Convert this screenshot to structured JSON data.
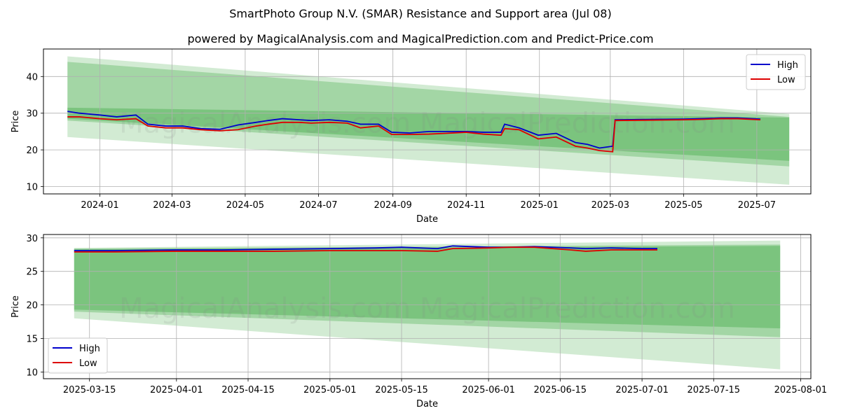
{
  "title": "SmartPhoto Group N.V. (SMAR) Resistance and Support area (Jul 08)",
  "subtitle": "powered by MagicalAnalysis.com and MagicalPrediction.com and Predict-Price.com",
  "watermark": "MagicalAnalysis.com    MagicalPrediction.com",
  "colors": {
    "high": "#0000cc",
    "low": "#dd0000",
    "band": "#4caf50"
  },
  "chart_data": [
    {
      "type": "line",
      "xlabel": "Date",
      "ylabel": "Price",
      "xlim": [
        "2023-11-15",
        "2025-08-15"
      ],
      "ylim": [
        8,
        47.5
      ],
      "x_ticks": [
        "2024-01",
        "2024-03",
        "2024-05",
        "2024-07",
        "2024-09",
        "2024-11",
        "2025-01",
        "2025-03",
        "2025-05",
        "2025-07"
      ],
      "y_ticks": [
        10,
        20,
        30,
        40
      ],
      "grid": true,
      "legend": "top-right",
      "bands": [
        {
          "x": [
            "2023-12-05",
            "2025-07-28"
          ],
          "upper": [
            45.5,
            29.8
          ],
          "lower": [
            23.5,
            10.5
          ]
        },
        {
          "x": [
            "2023-12-05",
            "2025-07-28"
          ],
          "upper": [
            44.0,
            29.0
          ],
          "lower": [
            28.0,
            15.5
          ]
        },
        {
          "x": [
            "2023-12-05",
            "2025-07-28"
          ],
          "upper": [
            31.5,
            28.8
          ],
          "lower": [
            28.5,
            17.0
          ]
        }
      ],
      "series": [
        {
          "name": "High",
          "x": [
            "2023-12-05",
            "2023-12-15",
            "2024-01-01",
            "2024-01-15",
            "2024-01-31",
            "2024-02-10",
            "2024-02-25",
            "2024-03-10",
            "2024-03-25",
            "2024-04-10",
            "2024-04-25",
            "2024-05-10",
            "2024-05-20",
            "2024-06-01",
            "2024-06-15",
            "2024-06-25",
            "2024-07-10",
            "2024-07-25",
            "2024-08-05",
            "2024-08-20",
            "2024-08-31",
            "2024-09-15",
            "2024-10-01",
            "2024-10-15",
            "2024-11-01",
            "2024-11-15",
            "2024-11-30",
            "2024-12-03",
            "2024-12-15",
            "2024-12-31",
            "2025-01-15",
            "2025-01-31",
            "2025-02-10",
            "2025-02-20",
            "2025-03-03",
            "2025-03-05",
            "2025-04-01",
            "2025-05-01",
            "2025-05-15",
            "2025-06-01",
            "2025-06-15",
            "2025-07-04"
          ],
          "values": [
            30.5,
            30.0,
            29.5,
            29.0,
            29.5,
            27.0,
            26.5,
            26.5,
            25.8,
            25.6,
            26.8,
            27.5,
            28.0,
            28.5,
            28.2,
            28.0,
            28.2,
            27.8,
            27.0,
            27.0,
            24.8,
            24.6,
            25.0,
            25.0,
            25.0,
            24.8,
            24.8,
            27.0,
            26.0,
            24.0,
            24.5,
            22.0,
            21.5,
            20.5,
            21.0,
            28.2,
            28.3,
            28.4,
            28.5,
            28.7,
            28.7,
            28.4
          ]
        },
        {
          "name": "Low",
          "x": [
            "2023-12-05",
            "2023-12-15",
            "2024-01-01",
            "2024-01-15",
            "2024-01-31",
            "2024-02-10",
            "2024-02-25",
            "2024-03-10",
            "2024-03-25",
            "2024-04-10",
            "2024-04-25",
            "2024-05-10",
            "2024-05-20",
            "2024-06-01",
            "2024-06-15",
            "2024-06-25",
            "2024-07-10",
            "2024-07-25",
            "2024-08-05",
            "2024-08-20",
            "2024-08-31",
            "2024-09-15",
            "2024-10-01",
            "2024-10-15",
            "2024-11-01",
            "2024-11-15",
            "2024-11-30",
            "2024-12-03",
            "2024-12-15",
            "2024-12-31",
            "2025-01-15",
            "2025-01-31",
            "2025-02-10",
            "2025-02-20",
            "2025-03-03",
            "2025-03-05",
            "2025-04-01",
            "2025-05-01",
            "2025-05-15",
            "2025-06-01",
            "2025-06-15",
            "2025-07-04"
          ],
          "values": [
            29.0,
            29.0,
            28.5,
            28.2,
            28.5,
            26.5,
            26.0,
            26.0,
            25.5,
            25.2,
            25.5,
            26.5,
            27.0,
            27.5,
            27.5,
            27.3,
            27.5,
            27.3,
            26.0,
            26.5,
            24.2,
            24.2,
            24.3,
            24.5,
            24.8,
            24.3,
            24.0,
            25.8,
            25.5,
            23.0,
            23.5,
            21.0,
            20.5,
            19.8,
            19.5,
            28.0,
            28.1,
            28.2,
            28.3,
            28.5,
            28.5,
            28.2
          ]
        }
      ]
    },
    {
      "type": "line",
      "xlabel": "Date",
      "ylabel": "Price",
      "xlim": [
        "2025-03-06",
        "2025-08-03"
      ],
      "ylim": [
        9,
        30.5
      ],
      "x_ticks": [
        "2025-03-15",
        "2025-04-01",
        "2025-04-15",
        "2025-05-01",
        "2025-05-15",
        "2025-06-01",
        "2025-06-15",
        "2025-07-01",
        "2025-07-15",
        "2025-08-01"
      ],
      "y_ticks": [
        10,
        15,
        20,
        25,
        30
      ],
      "grid": true,
      "legend": "bottom-left",
      "bands": [
        {
          "x": [
            "2025-03-12",
            "2025-07-28"
          ],
          "upper": [
            28.5,
            29.6
          ],
          "lower": [
            18.0,
            10.4
          ]
        },
        {
          "x": [
            "2025-03-12",
            "2025-07-28"
          ],
          "upper": [
            28.4,
            29.0
          ],
          "lower": [
            19.0,
            15.2
          ]
        },
        {
          "x": [
            "2025-03-12",
            "2025-07-28"
          ],
          "upper": [
            28.3,
            28.8
          ],
          "lower": [
            19.3,
            16.5
          ]
        }
      ],
      "series": [
        {
          "name": "High",
          "x": [
            "2025-03-12",
            "2025-03-20",
            "2025-04-01",
            "2025-04-10",
            "2025-04-20",
            "2025-05-01",
            "2025-05-10",
            "2025-05-15",
            "2025-05-22",
            "2025-05-25",
            "2025-06-01",
            "2025-06-05",
            "2025-06-10",
            "2025-06-17",
            "2025-06-20",
            "2025-06-25",
            "2025-07-01",
            "2025-07-04"
          ],
          "values": [
            28.1,
            28.1,
            28.2,
            28.2,
            28.3,
            28.4,
            28.5,
            28.6,
            28.4,
            28.8,
            28.6,
            28.6,
            28.7,
            28.5,
            28.4,
            28.5,
            28.4,
            28.4
          ]
        },
        {
          "name": "Low",
          "x": [
            "2025-03-12",
            "2025-03-20",
            "2025-04-01",
            "2025-04-10",
            "2025-04-20",
            "2025-05-01",
            "2025-05-10",
            "2025-05-15",
            "2025-05-22",
            "2025-05-25",
            "2025-06-01",
            "2025-06-05",
            "2025-06-10",
            "2025-06-17",
            "2025-06-20",
            "2025-06-25",
            "2025-07-01",
            "2025-07-04"
          ],
          "values": [
            27.9,
            27.9,
            28.0,
            28.0,
            28.0,
            28.1,
            28.1,
            28.1,
            28.0,
            28.4,
            28.5,
            28.6,
            28.6,
            28.2,
            28.0,
            28.2,
            28.2,
            28.2
          ]
        }
      ]
    }
  ]
}
